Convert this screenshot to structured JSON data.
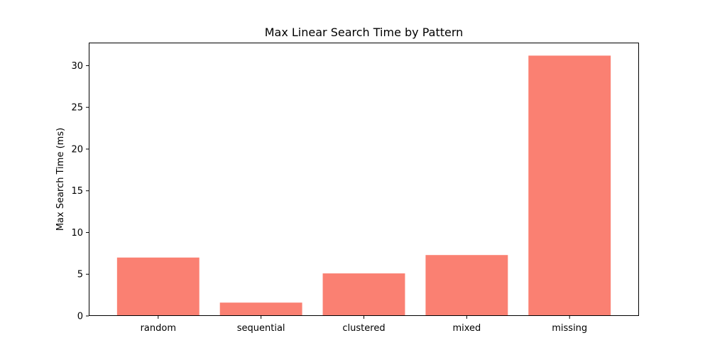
{
  "chart_data": {
    "type": "bar",
    "title": "Max Linear Search Time by Pattern",
    "xlabel": "",
    "ylabel": "Max Search Time (ms)",
    "categories": [
      "random",
      "sequential",
      "clustered",
      "mixed",
      "missing"
    ],
    "values": [
      7.0,
      1.6,
      5.1,
      7.3,
      31.2
    ],
    "ylim": [
      0,
      32.76
    ],
    "yticks": [
      0,
      5,
      10,
      15,
      20,
      25,
      30
    ],
    "grid": false,
    "bar_color": "#fa8072"
  }
}
